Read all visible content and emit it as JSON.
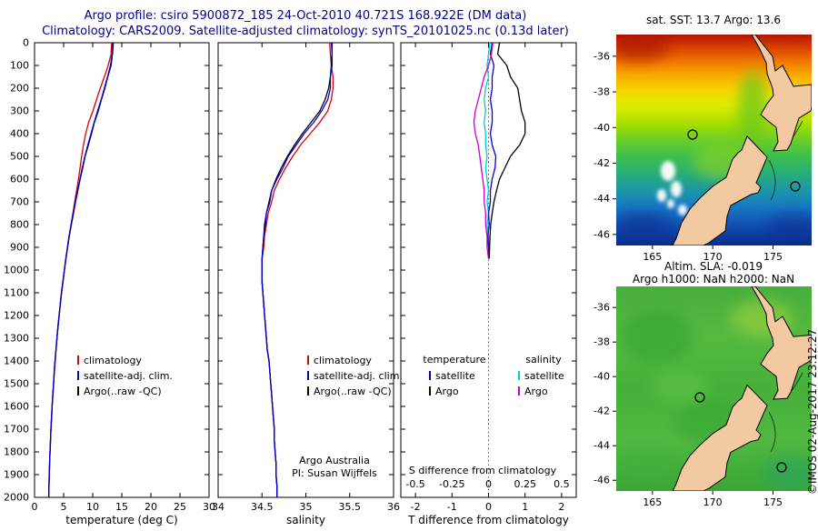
{
  "title": {
    "line1": "Argo profile: csiro 5900872_185 24-Oct-2010 40.721S 168.922E (DM data)",
    "line2": "Climatology: CARS2009. Satellite-adjusted climatology: synTS_20101025.nc (0.13d later)"
  },
  "watermark": "©IMOS 02-Aug-2017 23:12:27",
  "chart_data": [
    {
      "id": "temperature_profile",
      "type": "line",
      "xlabel": "temperature (deg C)",
      "xlim": [
        0,
        30
      ],
      "xticks": [
        0,
        5,
        10,
        15,
        20,
        25,
        30
      ],
      "ylim": [
        0,
        2000
      ],
      "yticks": [
        0,
        100,
        200,
        300,
        400,
        500,
        600,
        700,
        800,
        900,
        1000,
        1100,
        1200,
        1300,
        1400,
        1500,
        1600,
        1700,
        1800,
        1900,
        2000
      ],
      "depth": [
        0,
        50,
        100,
        150,
        200,
        250,
        300,
        350,
        400,
        450,
        500,
        550,
        600,
        650,
        700,
        750,
        800,
        850,
        900,
        950,
        1000,
        1050,
        1100,
        1150,
        1200,
        1250,
        1300,
        1350,
        1400,
        1450,
        1500,
        1550,
        1600,
        1650,
        1700,
        1750,
        1800,
        1850,
        1900,
        1950,
        2000
      ],
      "series": [
        {
          "name": "climatology",
          "color": "#dd0000",
          "values": [
            13.25,
            13.15,
            12.65,
            12.0,
            11.3,
            10.65,
            10.05,
            9.3,
            8.8,
            8.4,
            8.1,
            7.83,
            7.55,
            7.23,
            6.9,
            6.6,
            6.27,
            5.94,
            5.65,
            5.38,
            5.12,
            4.88,
            4.62,
            4.42,
            4.22,
            4.02,
            3.84,
            3.68,
            3.52,
            3.38,
            3.26,
            3.13,
            3.01,
            2.91,
            2.81,
            2.73,
            2.65,
            2.58,
            2.52,
            2.47,
            2.42
          ]
        },
        {
          "name": "satellite-adj. clim.",
          "color": "#0000dd",
          "values": [
            13.45,
            13.35,
            13.05,
            12.55,
            12.0,
            11.45,
            10.85,
            10.25,
            9.7,
            9.15,
            8.65,
            8.2,
            7.8,
            7.4,
            7.0,
            6.65,
            6.3,
            5.95,
            5.65,
            5.38,
            5.12,
            4.87,
            4.62,
            4.42,
            4.22,
            4.02,
            3.84,
            3.68,
            3.52,
            3.38,
            3.27,
            3.14,
            3.02,
            2.92,
            2.82,
            2.74,
            2.66,
            2.59,
            2.53,
            2.48,
            2.43
          ]
        },
        {
          "name": "Argo(..raw -QC)",
          "color": "#000000",
          "values": [
            13.55,
            13.4,
            13.15,
            12.6,
            12.1,
            11.5,
            10.95,
            10.3,
            9.8,
            9.25,
            8.7,
            8.28,
            7.85,
            7.45,
            7.05,
            6.7,
            6.33,
            5.98,
            5.68,
            5.4,
            5.14,
            4.9,
            4.64,
            4.44,
            4.24,
            4.04,
            3.86,
            3.7,
            3.54,
            3.4,
            3.28,
            3.15,
            3.03,
            2.93,
            2.83,
            2.75,
            2.67,
            2.6,
            2.54,
            2.49,
            2.44
          ]
        }
      ]
    },
    {
      "id": "salinity_profile",
      "type": "line",
      "xlabel": "salinity",
      "xlim": [
        34,
        36
      ],
      "xticks": [
        34,
        34.5,
        35,
        35.5,
        36
      ],
      "ylim": [
        0,
        2000
      ],
      "annotation": [
        "Argo Australia",
        "PI: Susan Wijffels"
      ],
      "depth": [
        0,
        50,
        100,
        150,
        200,
        250,
        300,
        350,
        400,
        450,
        500,
        550,
        600,
        650,
        700,
        750,
        800,
        850,
        900,
        950,
        1000,
        1050,
        1100,
        1150,
        1200,
        1250,
        1300,
        1350,
        1400,
        1450,
        1500,
        1550,
        1600,
        1650,
        1700,
        1750,
        1800,
        1850,
        1900,
        1950,
        2000
      ],
      "series": [
        {
          "name": "climatology",
          "color": "#dd0000",
          "values": [
            35.27,
            35.28,
            35.29,
            35.31,
            35.31,
            35.29,
            35.25,
            35.16,
            35.05,
            34.94,
            34.85,
            34.77,
            34.7,
            34.64,
            34.61,
            34.57,
            34.55,
            34.53,
            34.52,
            34.5,
            34.5,
            34.5,
            34.51,
            34.52,
            34.53,
            34.54,
            34.55,
            34.56,
            34.58,
            34.59,
            34.6,
            34.61,
            34.62,
            34.63,
            34.64,
            34.64,
            34.65,
            34.66,
            34.66,
            34.67,
            34.67
          ]
        },
        {
          "name": "satellite-adj. clim.",
          "color": "#0000dd",
          "values": [
            35.29,
            35.3,
            35.3,
            35.28,
            35.28,
            35.25,
            35.18,
            35.09,
            34.98,
            34.89,
            34.8,
            34.74,
            34.67,
            34.61,
            34.59,
            34.55,
            34.54,
            34.52,
            34.51,
            34.5,
            34.5,
            34.5,
            34.51,
            34.52,
            34.53,
            34.54,
            34.55,
            34.56,
            34.58,
            34.59,
            34.6,
            34.61,
            34.62,
            34.63,
            34.64,
            34.64,
            34.65,
            34.66,
            34.66,
            34.67,
            34.67
          ]
        },
        {
          "name": "Argo(..raw -QC)",
          "color": "#000000",
          "values": [
            35.3,
            35.3,
            35.29,
            35.28,
            35.26,
            35.22,
            35.16,
            35.06,
            34.96,
            34.87,
            34.79,
            34.72,
            34.66,
            34.61,
            34.58,
            34.55,
            34.53,
            34.52,
            34.51,
            34.5,
            34.5,
            34.5,
            34.51,
            34.52,
            34.53,
            34.54,
            34.55,
            34.56,
            34.58,
            34.59,
            34.6,
            34.61,
            34.62,
            34.63,
            34.64,
            34.64,
            34.65,
            34.66,
            34.66,
            34.67,
            34.67
          ]
        }
      ]
    },
    {
      "id": "difference_profile",
      "type": "line",
      "xlabel": "T difference from climatology",
      "xlabel_secondary": "S difference from climatology",
      "xlim": [
        -2.4,
        2.4
      ],
      "xticks": [
        -2,
        -1,
        0,
        1,
        2
      ],
      "xticks_secondary": [
        "-0.5",
        "-0.25",
        "0",
        "0.25",
        "0.5"
      ],
      "s_scale": 4,
      "legend_groups": [
        "temperature",
        "salinity"
      ],
      "depth": [
        0,
        50,
        100,
        150,
        200,
        250,
        300,
        350,
        400,
        450,
        500,
        550,
        600,
        650,
        700,
        750,
        800,
        850,
        900,
        950
      ],
      "series": [
        {
          "name": "satellite",
          "group": "temperature",
          "color": "#0000dd",
          "values": [
            0.1,
            0.05,
            0.15,
            0.1,
            0.1,
            0.05,
            0.1,
            0.1,
            0.05,
            0.1,
            0.2,
            0.18,
            0.1,
            0.05,
            0.05,
            0.0,
            0.02,
            -0.02,
            0.0,
            0.02
          ]
        },
        {
          "name": "Argo",
          "group": "temperature",
          "color": "#000000",
          "values": [
            0.3,
            0.25,
            0.5,
            0.6,
            0.8,
            0.85,
            0.9,
            1.0,
            1.0,
            0.85,
            0.6,
            0.45,
            0.3,
            0.22,
            0.15,
            0.1,
            0.06,
            0.04,
            0.03,
            0.02
          ]
        },
        {
          "name": "satellite",
          "group": "salinity",
          "color": "#00cccc",
          "values": [
            0.01,
            0.0,
            -0.01,
            0.0,
            -0.02,
            -0.03,
            -0.02,
            -0.03,
            -0.02,
            -0.02,
            -0.01,
            -0.02,
            -0.01,
            0.0,
            -0.01,
            0.0,
            -0.01,
            0.0,
            0.0,
            0.0
          ]
        },
        {
          "name": "Argo",
          "group": "salinity",
          "color": "#cc00cc",
          "values": [
            0.03,
            0.02,
            0.0,
            -0.03,
            -0.05,
            -0.07,
            -0.09,
            -0.1,
            -0.09,
            -0.07,
            -0.06,
            -0.05,
            -0.04,
            -0.03,
            -0.03,
            -0.02,
            -0.02,
            -0.01,
            -0.01,
            0.0
          ]
        }
      ]
    },
    {
      "id": "sst_map",
      "type": "map",
      "title": "sat. SST: 13.7  Argo: 13.6",
      "xticks": [
        165,
        170,
        175
      ],
      "yticks": [
        -36,
        -38,
        -40,
        -42,
        -44,
        -46
      ],
      "lon_range": [
        162,
        178.2
      ],
      "lat_range": [
        -34.78,
        -46.62
      ]
    },
    {
      "id": "sla_map",
      "type": "map",
      "title": "Altim. SLA: -0.019",
      "subtitle": "Argo h1000: NaN h2000: NaN",
      "xticks": [
        165,
        170,
        175
      ],
      "yticks": [
        -36,
        -38,
        -40,
        -42,
        -44,
        -46
      ],
      "lon_range": [
        162,
        178.2
      ],
      "lat_range": [
        -34.78,
        -46.62
      ]
    }
  ]
}
